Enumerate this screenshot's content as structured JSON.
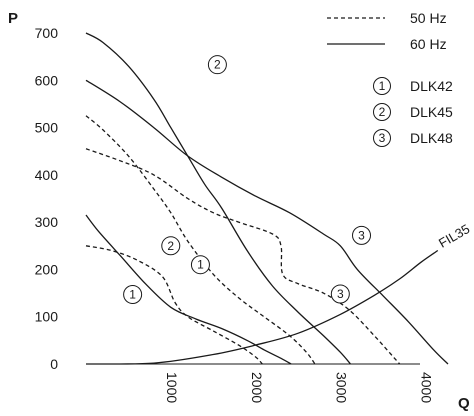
{
  "chart_data": {
    "type": "line",
    "xlabel": "Q",
    "ylabel": "P",
    "xlim": [
      0,
      4400
    ],
    "ylim": [
      0,
      700
    ],
    "xticks": [
      "1000",
      "2000",
      "3000",
      "4000"
    ],
    "yticks": [
      "0",
      "100",
      "200",
      "300",
      "400",
      "500",
      "600",
      "700"
    ],
    "grid": false,
    "legend_position": "top-right",
    "legend": {
      "styles": [
        {
          "label": "50 Hz",
          "dash": true
        },
        {
          "label": "60 Hz",
          "dash": false
        }
      ],
      "models": [
        {
          "marker": "1",
          "label": "DLK42"
        },
        {
          "marker": "2",
          "label": "DLK45"
        },
        {
          "marker": "3",
          "label": "DLK48"
        }
      ]
    },
    "series": [
      {
        "model": "1",
        "freq": "60 Hz",
        "dashed": false,
        "points": [
          [
            0,
            315
          ],
          [
            150,
            280
          ],
          [
            400,
            230
          ],
          [
            700,
            170
          ],
          [
            1000,
            120
          ],
          [
            1300,
            95
          ],
          [
            1600,
            75
          ],
          [
            1900,
            50
          ],
          [
            2100,
            30
          ],
          [
            2300,
            12
          ],
          [
            2420,
            0
          ]
        ]
      },
      {
        "model": "1",
        "freq": "50 Hz",
        "dashed": true,
        "points": [
          [
            0,
            250
          ],
          [
            300,
            240
          ],
          [
            600,
            220
          ],
          [
            900,
            185
          ],
          [
            1050,
            130
          ],
          [
            1200,
            100
          ],
          [
            1500,
            70
          ],
          [
            1800,
            40
          ],
          [
            2000,
            15
          ],
          [
            2080,
            0
          ]
        ]
      },
      {
        "model": "2",
        "freq": "60 Hz",
        "dashed": false,
        "points": [
          [
            0,
            700
          ],
          [
            200,
            680
          ],
          [
            500,
            630
          ],
          [
            800,
            560
          ],
          [
            1000,
            500
          ],
          [
            1200,
            440
          ],
          [
            1400,
            380
          ],
          [
            1600,
            330
          ],
          [
            1900,
            240
          ],
          [
            2200,
            165
          ],
          [
            2500,
            110
          ],
          [
            2800,
            60
          ],
          [
            3000,
            25
          ],
          [
            3120,
            0
          ]
        ]
      },
      {
        "model": "2",
        "freq": "50 Hz",
        "dashed": true,
        "points": [
          [
            0,
            525
          ],
          [
            200,
            495
          ],
          [
            500,
            440
          ],
          [
            800,
            370
          ],
          [
            1000,
            320
          ],
          [
            1200,
            260
          ],
          [
            1500,
            190
          ],
          [
            1800,
            140
          ],
          [
            2100,
            100
          ],
          [
            2400,
            60
          ],
          [
            2600,
            25
          ],
          [
            2700,
            0
          ]
        ]
      },
      {
        "model": "3",
        "freq": "60 Hz",
        "dashed": false,
        "points": [
          [
            0,
            600
          ],
          [
            400,
            555
          ],
          [
            800,
            500
          ],
          [
            1200,
            440
          ],
          [
            1600,
            395
          ],
          [
            2000,
            355
          ],
          [
            2400,
            320
          ],
          [
            2800,
            275
          ],
          [
            3000,
            250
          ],
          [
            3200,
            200
          ],
          [
            3500,
            145
          ],
          [
            3800,
            90
          ],
          [
            4100,
            30
          ],
          [
            4270,
            0
          ]
        ]
      },
      {
        "model": "3",
        "freq": "50 Hz",
        "dashed": true,
        "points": [
          [
            0,
            455
          ],
          [
            400,
            430
          ],
          [
            800,
            400
          ],
          [
            1200,
            350
          ],
          [
            1500,
            320
          ],
          [
            1800,
            300
          ],
          [
            2200,
            275
          ],
          [
            2300,
            250
          ],
          [
            2320,
            190
          ],
          [
            2500,
            170
          ],
          [
            2800,
            150
          ],
          [
            3100,
            115
          ],
          [
            3400,
            60
          ],
          [
            3600,
            20
          ],
          [
            3700,
            0
          ]
        ]
      },
      {
        "model": "FIL35",
        "freq": "",
        "dashed": false,
        "points": [
          [
            0,
            0
          ],
          [
            800,
            2
          ],
          [
            1500,
            20
          ],
          [
            2000,
            40
          ],
          [
            2500,
            65
          ],
          [
            3000,
            105
          ],
          [
            3400,
            145
          ],
          [
            3700,
            180
          ],
          [
            3950,
            215
          ],
          [
            4150,
            240
          ]
        ]
      }
    ],
    "labels": [
      {
        "text": "2",
        "x": 1550,
        "y": 633
      },
      {
        "text": "2",
        "x": 1000,
        "y": 250
      },
      {
        "text": "1",
        "x": 1350,
        "y": 210
      },
      {
        "text": "1",
        "x": 550,
        "y": 147
      },
      {
        "text": "3",
        "x": 3250,
        "y": 272
      },
      {
        "text": "3",
        "x": 3000,
        "y": 148
      }
    ],
    "annotation": {
      "text": "FIL35",
      "x": 4200,
      "y": 245
    }
  }
}
